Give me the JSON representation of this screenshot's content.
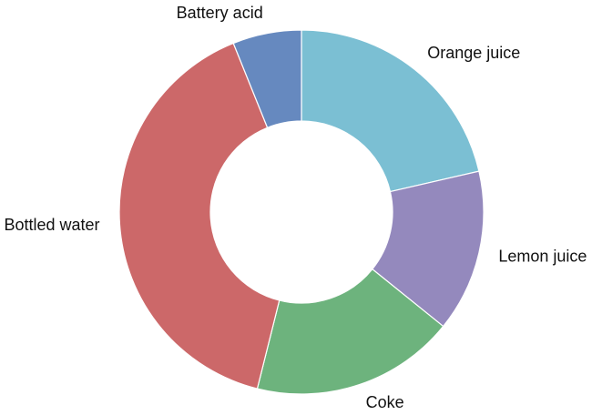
{
  "chart_data": {
    "type": "pie",
    "donut": true,
    "title": "",
    "start_angle_deg": 0,
    "direction": "clockwise",
    "slices": [
      {
        "label": "Orange juice",
        "value": 21.4,
        "color": "#7bbfd3"
      },
      {
        "label": "Lemon juice",
        "value": 14.4,
        "color": "#9489bd"
      },
      {
        "label": "Coke",
        "value": 18.1,
        "color": "#6db37d"
      },
      {
        "label": "Bottled water",
        "value": 40.0,
        "color": "#cc6869"
      },
      {
        "label": "Battery acid",
        "value": 6.1,
        "color": "#6689bf"
      }
    ]
  }
}
